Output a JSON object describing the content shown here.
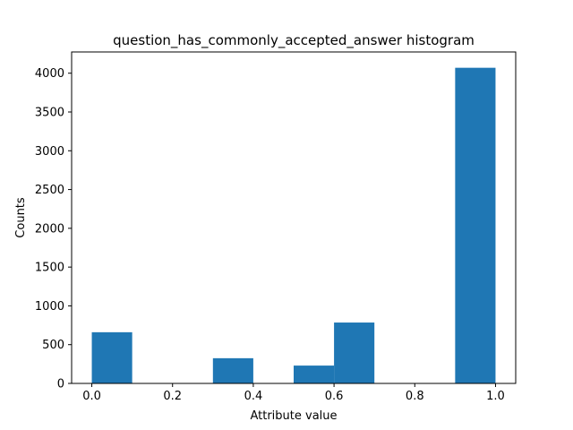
{
  "chart_data": {
    "type": "bar",
    "title": "question_has_commonly_accepted_answer histogram",
    "xlabel": "Attribute value",
    "ylabel": "Counts",
    "bin_edges": [
      0.0,
      0.1,
      0.2,
      0.3,
      0.4,
      0.5,
      0.6,
      0.7,
      0.8,
      0.9,
      1.0
    ],
    "values": [
      660,
      0,
      0,
      325,
      0,
      230,
      785,
      0,
      0,
      4070
    ],
    "xlim": [
      -0.05,
      1.05
    ],
    "ylim": [
      0,
      4274
    ],
    "xticks": [
      0.0,
      0.2,
      0.4,
      0.6,
      0.8,
      1.0
    ],
    "xtick_labels": [
      "0.0",
      "0.2",
      "0.4",
      "0.6",
      "0.8",
      "1.0"
    ],
    "yticks": [
      0,
      500,
      1000,
      1500,
      2000,
      2500,
      3000,
      3500,
      4000
    ],
    "ytick_labels": [
      "0",
      "500",
      "1000",
      "1500",
      "2000",
      "2500",
      "3000",
      "3500",
      "4000"
    ],
    "grid": false,
    "legend": "none",
    "bar_color": "#1f77b4"
  }
}
